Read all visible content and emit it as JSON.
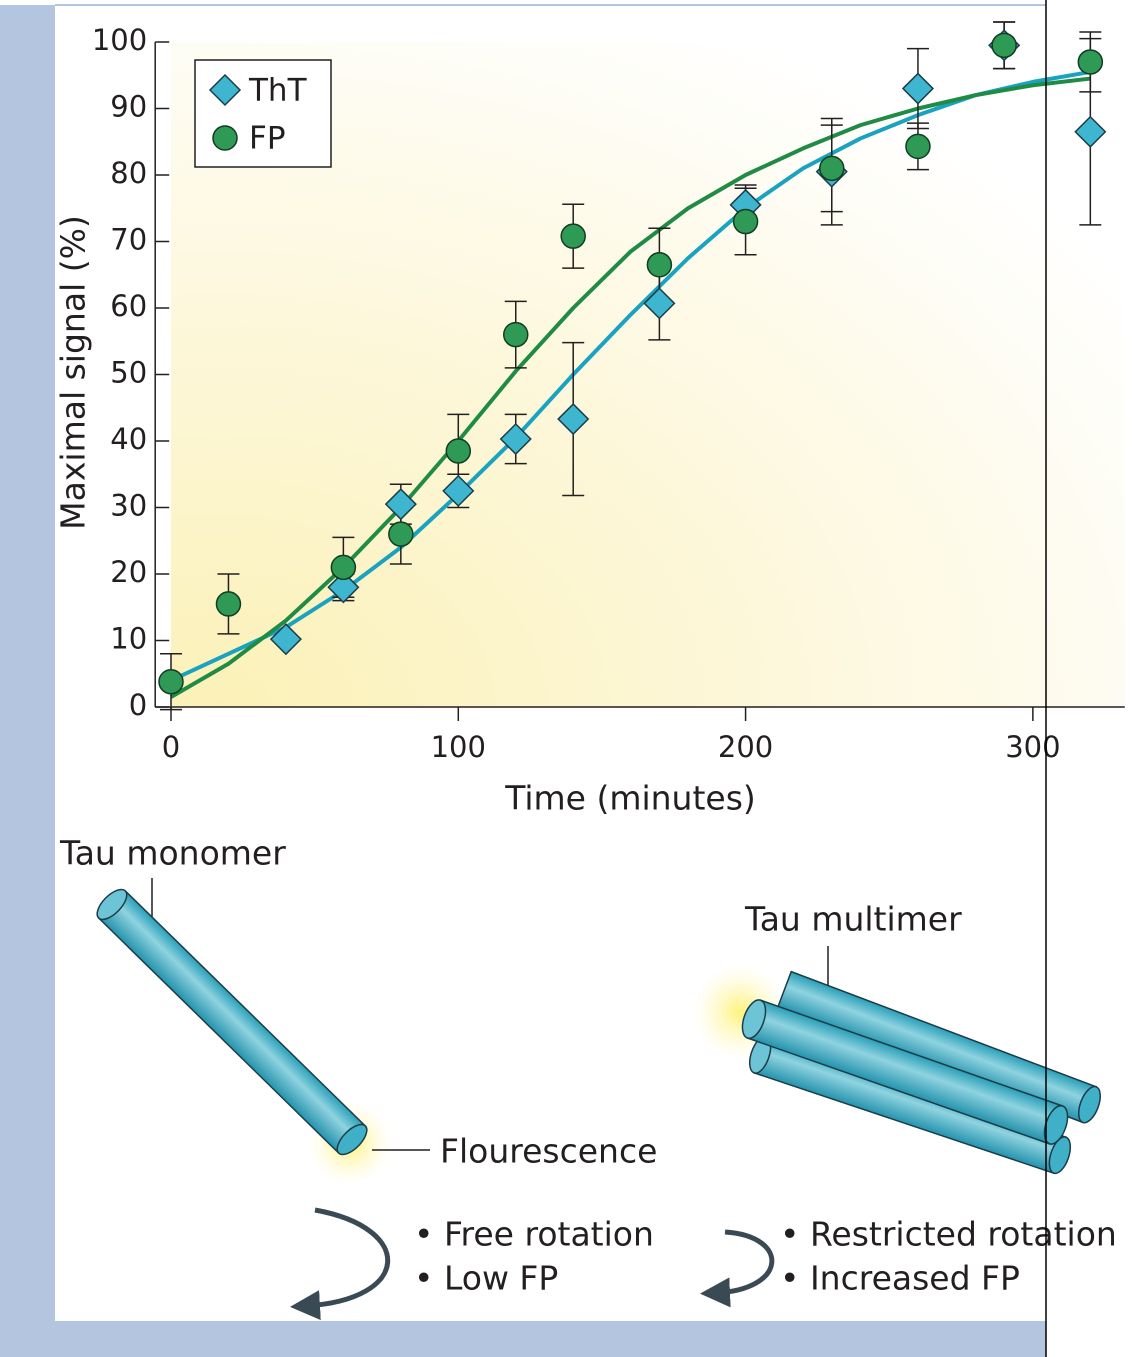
{
  "chart_data": {
    "type": "scatter",
    "xlabel": "Time (minutes)",
    "ylabel": "Maximal signal (%)",
    "xlim": [
      -5.5,
      332
    ],
    "xticks": [
      0,
      100,
      200,
      300
    ],
    "ylim": [
      0,
      100
    ],
    "yticks": [
      0,
      10,
      20,
      30,
      40,
      50,
      60,
      70,
      80,
      90,
      100
    ],
    "legend": "upper left",
    "series": [
      {
        "name": "ThT",
        "color": "#3fb6d0",
        "marker": "diamond",
        "x": [
          40,
          60,
          80,
          100,
          120,
          140,
          170,
          200,
          230,
          260,
          290,
          320
        ],
        "values": [
          10.2,
          18,
          30.5,
          32.5,
          40.3,
          43.3,
          60.7,
          75.5,
          80.5,
          93,
          99.5,
          86.5
        ],
        "errors": [
          0,
          2,
          3,
          2.5,
          3.7,
          11.5,
          5.5,
          3,
          8,
          6,
          3.5,
          14
        ]
      },
      {
        "name": "FP",
        "color": "#2e9a55",
        "marker": "circle",
        "x": [
          0,
          20,
          60,
          80,
          100,
          120,
          140,
          170,
          200,
          230,
          260,
          290,
          320
        ],
        "values": [
          3.8,
          15.5,
          21,
          26,
          38.5,
          56,
          70.8,
          66.5,
          73,
          81,
          84.3,
          99.5,
          97
        ],
        "errors": [
          4.2,
          4.5,
          4.5,
          4.5,
          5.5,
          5,
          4.8,
          5.5,
          5,
          6.5,
          3.5,
          3.5,
          4.5
        ]
      }
    ],
    "fit_x": [
      0,
      20,
      40,
      60,
      80,
      100,
      120,
      140,
      160,
      180,
      200,
      220,
      240,
      260,
      280,
      300,
      320
    ],
    "fits": [
      {
        "color": "#1aa3c0",
        "values": [
          4,
          8,
          12,
          17.5,
          24,
          32,
          40.5,
          50,
          59,
          67.5,
          75,
          81,
          85.5,
          89,
          92,
          94,
          95.5
        ]
      },
      {
        "color": "#1f8b45",
        "values": [
          1.5,
          6.5,
          13,
          21,
          30,
          40,
          50.5,
          60,
          68.5,
          75,
          80,
          84,
          87.5,
          90,
          92,
          93.5,
          94.5
        ]
      }
    ]
  },
  "diagram": {
    "monomer_label": "Tau monomer",
    "multimer_label": "Tau multimer",
    "fluorescence_label": "Flourescence",
    "monomer_notes": [
      "• Free rotation",
      "• Low FP"
    ],
    "multimer_notes": [
      "• Restricted rotation",
      "• Increased FP"
    ]
  }
}
